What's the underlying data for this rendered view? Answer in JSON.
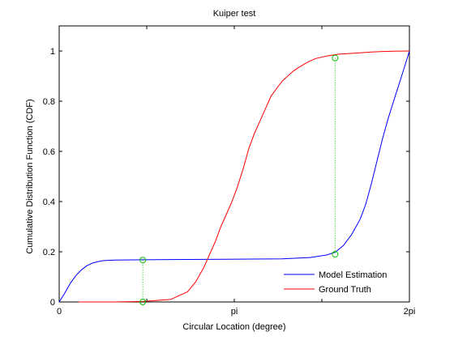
{
  "chart_data": {
    "type": "line",
    "title": "Kuiper test",
    "xlabel": "Circular Location (degree)",
    "ylabel": "Cumulative Distribution Function (CDF)",
    "xlim": [
      0,
      6.2832
    ],
    "ylim": [
      0,
      1.1
    ],
    "x_ticks": [
      {
        "value": 0,
        "label": "0"
      },
      {
        "value": 3.1416,
        "label": "pi"
      },
      {
        "value": 6.2832,
        "label": "2pi"
      }
    ],
    "x_minor_ticks": [
      1.5708,
      4.7124
    ],
    "y_ticks": [
      {
        "value": 0,
        "label": "0"
      },
      {
        "value": 0.2,
        "label": "0.2"
      },
      {
        "value": 0.4,
        "label": "0.4"
      },
      {
        "value": 0.6,
        "label": "0.6"
      },
      {
        "value": 0.8,
        "label": "0.8"
      },
      {
        "value": 1,
        "label": "1"
      }
    ],
    "grid": false,
    "legend_position": "bottom-right",
    "series": [
      {
        "name": "Model Estimation",
        "color": "#0000ff",
        "x": [
          0,
          0.1,
          0.2,
          0.3,
          0.4,
          0.5,
          0.6,
          0.7,
          0.8,
          1.0,
          1.5,
          2.0,
          3.0,
          4.0,
          4.5,
          4.8,
          4.95,
          5.1,
          5.25,
          5.4,
          5.5,
          5.6,
          5.7,
          5.8,
          5.9,
          6.0,
          6.1,
          6.2,
          6.2832
        ],
        "y": [
          0,
          0.035,
          0.075,
          0.105,
          0.128,
          0.145,
          0.155,
          0.161,
          0.165,
          0.167,
          0.168,
          0.169,
          0.17,
          0.172,
          0.177,
          0.187,
          0.198,
          0.225,
          0.27,
          0.33,
          0.39,
          0.47,
          0.56,
          0.65,
          0.73,
          0.8,
          0.87,
          0.94,
          1.0
        ]
      },
      {
        "name": "Ground Truth",
        "color": "#ff0000",
        "x": [
          0.35,
          1.0,
          1.5,
          2.0,
          2.3,
          2.45,
          2.6,
          2.7,
          2.8,
          2.9,
          3.0,
          3.1,
          3.2,
          3.3,
          3.4,
          3.5,
          3.6,
          3.7,
          3.8,
          3.9,
          4.0,
          4.1,
          4.2,
          4.3,
          4.4,
          4.5,
          4.6,
          4.8,
          5.0,
          5.2,
          5.4,
          5.6,
          5.8,
          6.0,
          6.2832
        ],
        "y": [
          0,
          0,
          0.002,
          0.01,
          0.04,
          0.08,
          0.14,
          0.19,
          0.24,
          0.3,
          0.35,
          0.4,
          0.46,
          0.53,
          0.61,
          0.67,
          0.72,
          0.77,
          0.82,
          0.85,
          0.88,
          0.9,
          0.92,
          0.935,
          0.948,
          0.96,
          0.97,
          0.98,
          0.987,
          0.99,
          0.993,
          0.996,
          0.998,
          0.999,
          1.0
        ]
      }
    ],
    "markers": {
      "color": "#00c000",
      "lines": [
        {
          "x": 1.5,
          "y_values": [
            0.167,
            0
          ]
        },
        {
          "x": 4.95,
          "y_values": [
            0.972,
            0.19
          ]
        }
      ]
    }
  }
}
